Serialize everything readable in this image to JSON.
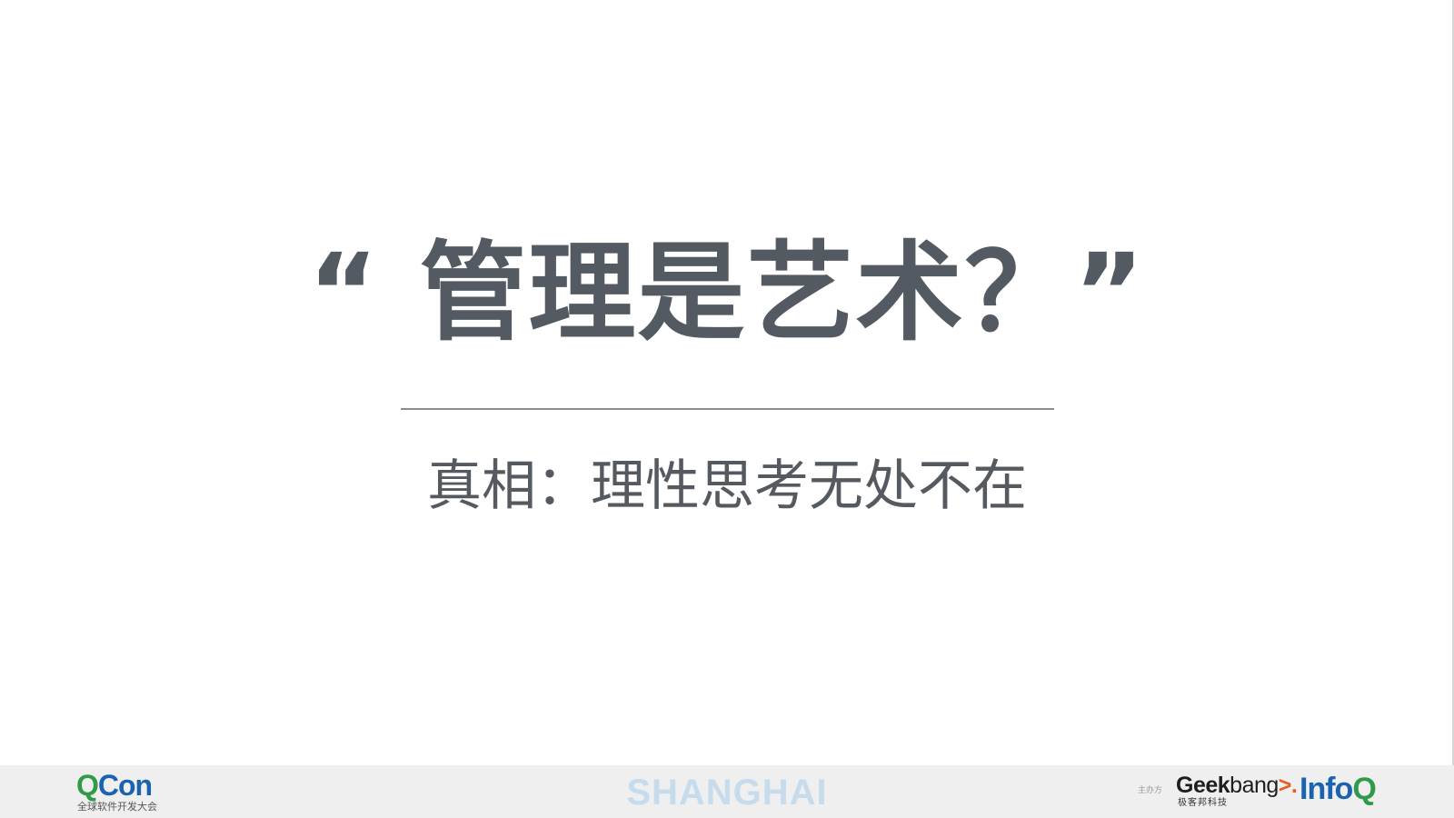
{
  "slide": {
    "title": "“ 管理是艺术？”",
    "subtitle": "真相：理性思考无处不在"
  },
  "footer": {
    "qcon": {
      "name_q": "Q",
      "name_con": "Con",
      "tagline": "全球软件开发大会"
    },
    "city": "SHANGHAI",
    "organizer_label": "主办方",
    "geekbang": {
      "name_geek": "Geek",
      "name_bang": "bang",
      "name_arrow": ">.",
      "tagline": "极客邦科技"
    },
    "infoq": {
      "name_info": "Info",
      "name_q": "Q"
    }
  },
  "colors": {
    "title": "#545a61",
    "subtitle": "#555a61",
    "divider": "#8c8c8c",
    "footer_bg": "#efefef",
    "city": "#c6dced",
    "brand_green": "#2f9a47",
    "brand_blue": "#1b62b0",
    "brand_orange": "#e25d1e"
  }
}
